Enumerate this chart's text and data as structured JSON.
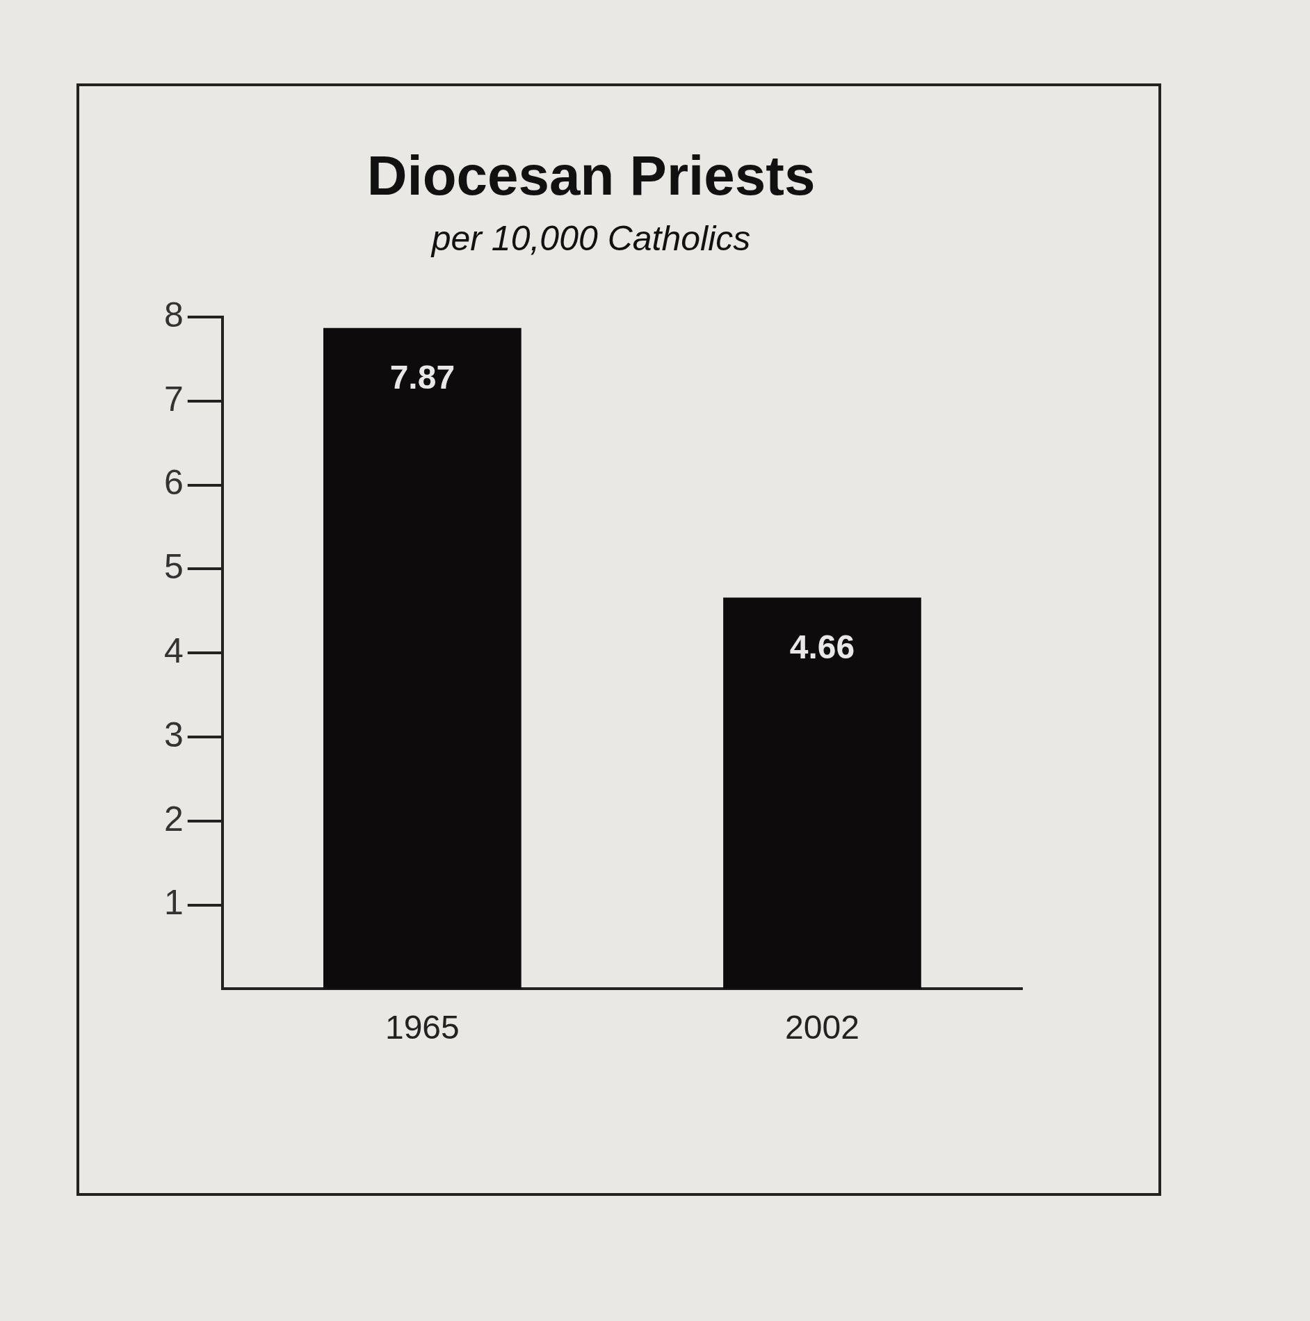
{
  "chart_data": {
    "type": "bar",
    "title": "Diocesan Priests",
    "subtitle": "per 10,000 Catholics",
    "categories": [
      "1965",
      "2002"
    ],
    "values": [
      7.87,
      4.66
    ],
    "color": "#0d0b0b",
    "ylim": [
      0,
      8
    ],
    "yticks": [
      1,
      2,
      3,
      4,
      5,
      6,
      7,
      8
    ],
    "grid": false,
    "data_labels": true,
    "legend": false
  }
}
